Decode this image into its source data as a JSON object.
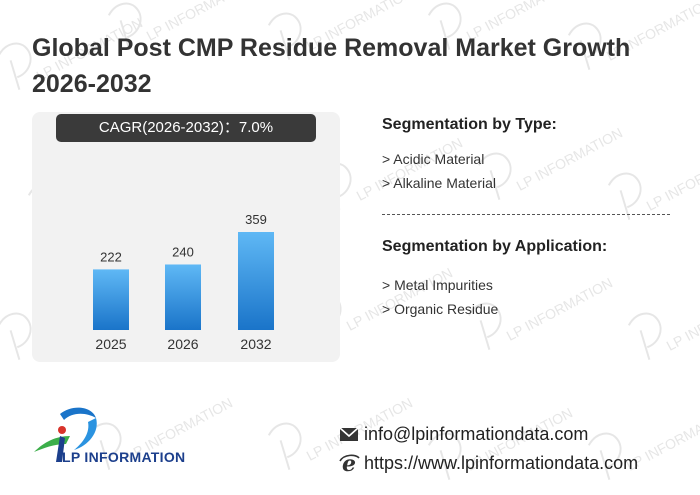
{
  "title": "Global Post CMP Residue Removal Market Growth 2026-2032",
  "cagr_label": "CAGR(2026-2032)：7.0%",
  "chart_data": {
    "type": "bar",
    "categories": [
      "2025",
      "2026",
      "2032"
    ],
    "values": [
      222,
      240,
      359
    ],
    "ylim": [
      0,
      359
    ],
    "grid": false,
    "bar_color_top": "#5fb8f5",
    "bar_color_bottom": "#1a74c9"
  },
  "segmentation_type": {
    "title": "Segmentation by Type:",
    "items": [
      "> Acidic Material",
      "> Alkaline Material"
    ]
  },
  "segmentation_application": {
    "title": "Segmentation by Application:",
    "items": [
      "> Metal Impurities",
      "> Organic Residue"
    ]
  },
  "logo": {
    "text": "LP INFORMATION",
    "icon": "lp-logo-icon"
  },
  "contact": {
    "email": "info@lpinformationdata.com",
    "website": "https://www.lpinformationdata.com",
    "email_icon": "envelope-icon",
    "web_icon": "ie-browser-icon"
  },
  "watermark": {
    "text": "LP INFORMATION"
  }
}
